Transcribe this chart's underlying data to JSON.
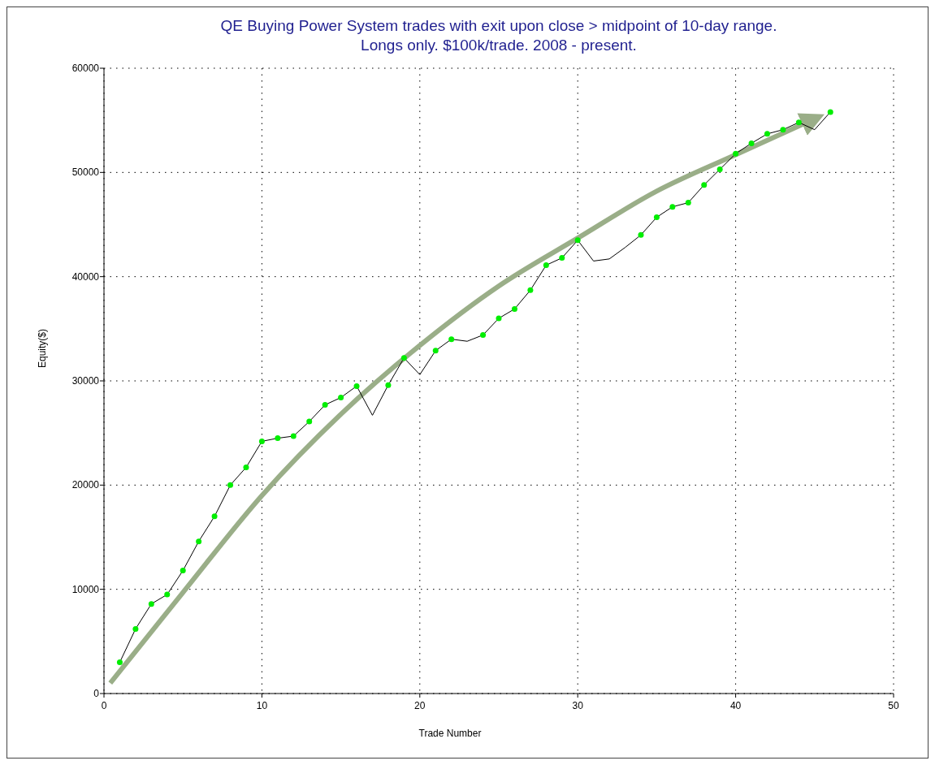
{
  "chart_data": {
    "type": "line",
    "title": "QE Buying Power System trades with exit upon close > midpoint of 10-day range.",
    "subtitle": "Longs only. $100k/trade. 2008 - present.",
    "xlabel": "Trade Number",
    "ylabel": "Equity($)",
    "x": [
      1,
      2,
      3,
      4,
      5,
      6,
      7,
      8,
      9,
      10,
      11,
      12,
      13,
      14,
      15,
      16,
      17,
      18,
      19,
      20,
      21,
      22,
      23,
      24,
      25,
      26,
      27,
      28,
      29,
      30,
      31,
      32,
      33,
      34,
      35,
      36,
      37,
      38,
      39,
      40,
      41,
      42,
      43,
      44,
      45,
      46
    ],
    "series": [
      {
        "type": "line",
        "color": "#9aae88",
        "marker": "none",
        "line_style": "solid",
        "x": [
          0.4,
          5,
          10,
          15,
          20,
          25,
          30,
          35,
          40,
          44.5
        ],
        "values": [
          1000,
          9700,
          19000,
          26800,
          33400,
          39100,
          43700,
          48200,
          51700,
          54800
        ]
      },
      {
        "color": "#000000",
        "marker": "none",
        "line_style": "solid",
        "values": [
          3000,
          6200,
          8600,
          9500,
          11800,
          14600,
          17000,
          20000,
          21700,
          24200,
          24500,
          24700,
          26100,
          27700,
          28400,
          29500,
          26700,
          29600,
          32200,
          30600,
          32900,
          34000,
          33800,
          34400,
          36000,
          36900,
          38700,
          41100,
          41800,
          43500,
          41500,
          41700,
          42800,
          44000,
          45700,
          46700,
          47100,
          48800,
          50300,
          51800,
          52800,
          53700,
          54100,
          54800,
          54100,
          55800
        ]
      },
      {
        "type": "scatter",
        "color": "#00ee00",
        "marker": "circle",
        "values": [
          3000,
          6200,
          8600,
          9500,
          11800,
          14600,
          17000,
          20000,
          21700,
          24200,
          24500,
          24700,
          26100,
          27700,
          28400,
          29500,
          null,
          29600,
          32200,
          null,
          32900,
          34000,
          null,
          34400,
          36000,
          36900,
          38700,
          41100,
          41800,
          43500,
          null,
          null,
          null,
          44000,
          45700,
          46700,
          47100,
          48800,
          50300,
          51800,
          52800,
          53700,
          54100,
          54800,
          null,
          55800
        ]
      }
    ],
    "xlim": [
      0,
      50
    ],
    "xticks": [
      0,
      10,
      20,
      30,
      40,
      50
    ],
    "ylim": [
      0,
      60000
    ],
    "yticks": [
      0,
      10000,
      20000,
      30000,
      40000,
      50000,
      60000
    ],
    "grid": true
  }
}
